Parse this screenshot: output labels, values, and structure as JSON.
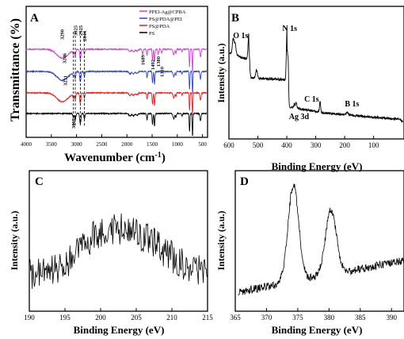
{
  "chart_data": [
    {
      "panel": "A",
      "type": "line",
      "xlabel": "Wavenumber (cm",
      "xlabel_sup": "-1",
      "xlabel_close": ")",
      "ylabel": "Transmittance (%)",
      "xlim": [
        4000,
        400
      ],
      "x_ticks": [
        4000,
        3500,
        3000,
        2500,
        2000,
        1500,
        1000,
        500
      ],
      "series": [
        {
          "name": "PPEI-Ag@CPBA",
          "color": "#cc44cc",
          "offset": 3.0
        },
        {
          "name": "PS@PDA@PEI",
          "color": "#3344bb",
          "offset": 2.0
        },
        {
          "name": "PS@PDA",
          "color": "#dd2222",
          "offset": 1.0
        },
        {
          "name": "PS",
          "color": "#000000",
          "offset": 0.0
        }
      ],
      "peak_labels": [
        {
          "text": "3290",
          "x": 3290,
          "series": 0
        },
        {
          "text": "3246",
          "x": 3246,
          "series": 1
        },
        {
          "text": "3231",
          "x": 3231,
          "series": 2
        },
        {
          "text": "3062",
          "x": 3062,
          "series": 3
        },
        {
          "text": "3025",
          "x": 3025,
          "series": 0
        },
        {
          "text": "2925",
          "x": 2925,
          "series": 0
        },
        {
          "text": "2844",
          "x": 2844,
          "series": 0
        },
        {
          "text": "1689",
          "x": 1689,
          "series": 0
        },
        {
          "text": "1492",
          "x": 1492,
          "series": 0
        },
        {
          "text": "1380",
          "x": 1380,
          "series": 0
        },
        {
          "text": "1310",
          "x": 1310,
          "series": 0
        }
      ]
    },
    {
      "panel": "B",
      "type": "line",
      "xlabel": "Binding Energy (eV)",
      "ylabel": "Intensity (a.u.)",
      "xlim": [
        600,
        -5
      ],
      "x_ticks": [
        600,
        500,
        400,
        300,
        200,
        100
      ],
      "peak_labels": [
        {
          "text": "O 1s",
          "x": 531
        },
        {
          "text": "N 1s",
          "x": 399
        },
        {
          "text": "C 1s",
          "x": 285
        },
        {
          "text": "B 1s",
          "x": 191
        },
        {
          "text": "Ag 3d",
          "x": 368
        }
      ]
    },
    {
      "panel": "C",
      "type": "line",
      "xlabel": "Binding Energy (eV)",
      "ylabel": "Intensity (a.u.)",
      "xlim": [
        190,
        215
      ],
      "x_ticks": [
        190,
        195,
        200,
        205,
        210,
        215
      ]
    },
    {
      "panel": "D",
      "type": "line",
      "xlabel": "Binding Energy (eV)",
      "ylabel": "Intensity (a.u.)",
      "xlim": [
        365,
        392
      ],
      "x_ticks": [
        365,
        370,
        375,
        380,
        385,
        390
      ],
      "peaks": [
        374.3,
        380.3
      ]
    }
  ]
}
